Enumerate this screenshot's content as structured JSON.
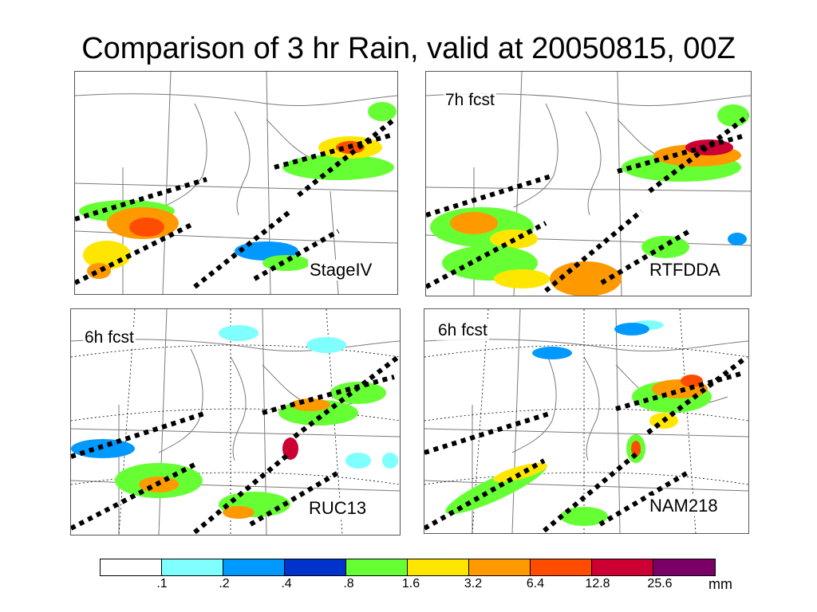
{
  "title": "Comparison of 3 hr Rain, valid at 20050815, 00Z",
  "panels": [
    {
      "name": "StageIV",
      "forecast": ""
    },
    {
      "name": "RTFDDA",
      "forecast": "7h fcst"
    },
    {
      "name": "RUC13",
      "forecast": "6h fcst"
    },
    {
      "name": "NAM218",
      "forecast": "6h fcst"
    }
  ],
  "colorbar": {
    "colors": [
      "#ffffff",
      "#80ffff",
      "#0099ff",
      "#0033cc",
      "#66ff33",
      "#ffe600",
      "#ff9900",
      "#ff4d00",
      "#cc0033",
      "#7a0066"
    ],
    "ticks": [
      ".1",
      ".2",
      ".4",
      ".8",
      "1.6",
      "3.2",
      "6.4",
      "12.8",
      "25.6"
    ],
    "unit": "mm"
  }
}
